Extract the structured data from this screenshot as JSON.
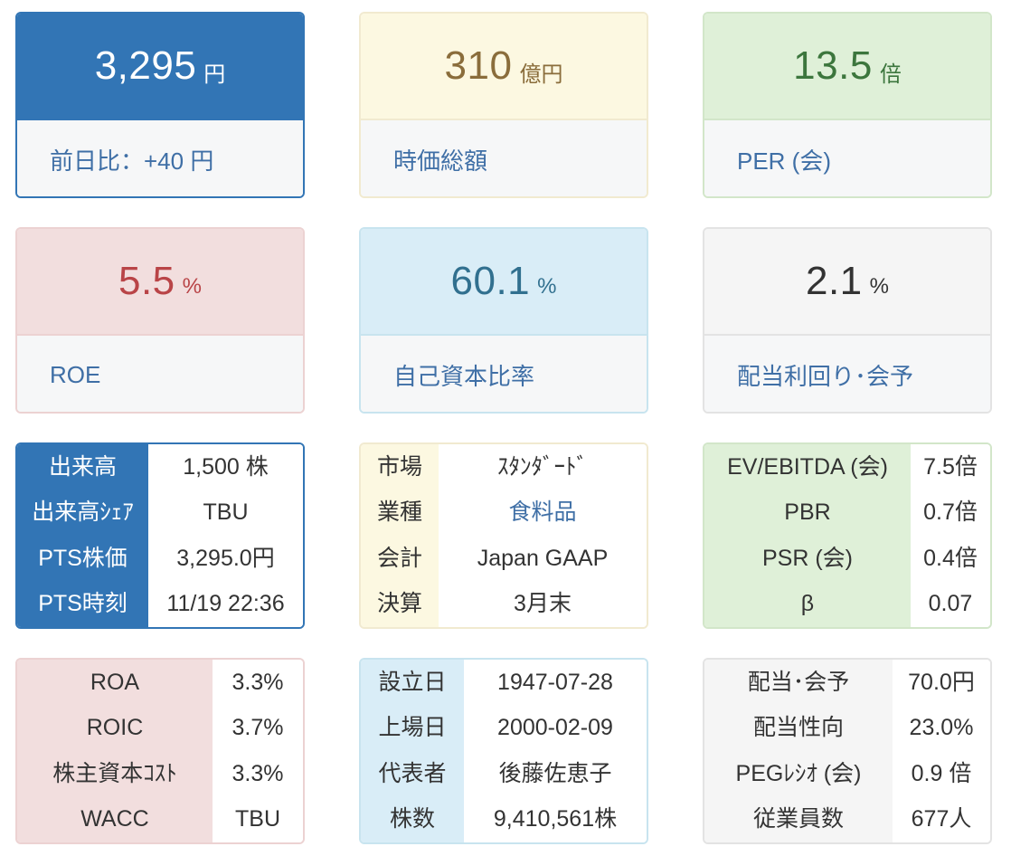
{
  "cards": {
    "price": {
      "value": "3,295",
      "unit": "円",
      "label": "前日比：+40 円"
    },
    "market_cap": {
      "value": "310",
      "unit": "億円",
      "label": "時価総額"
    },
    "per": {
      "value": "13.5",
      "unit": "倍",
      "label": "PER (会)"
    },
    "roe": {
      "value": "5.5",
      "unit": "%",
      "label": "ROE"
    },
    "equity_ratio": {
      "value": "60.1",
      "unit": "%",
      "label": "自己資本比率"
    },
    "dividend_yield": {
      "value": "2.1",
      "unit": "%",
      "label": "配当利回り･会予"
    }
  },
  "trading": [
    {
      "key": "出来高",
      "value": "1,500 株"
    },
    {
      "key": "出来高ｼｪｱ",
      "value": "TBU"
    },
    {
      "key": "PTS株価",
      "value": "3,295.0円"
    },
    {
      "key": "PTS時刻",
      "value": "11/19 22:36"
    }
  ],
  "company": [
    {
      "key": "市場",
      "value": "ｽﾀﾝﾀﾞｰﾄﾞ"
    },
    {
      "key": "業種",
      "value": "食料品"
    },
    {
      "key": "会計",
      "value": "Japan GAAP"
    },
    {
      "key": "決算",
      "value": "3月末"
    }
  ],
  "valuation": [
    {
      "key": "EV/EBITDA (会)",
      "value": "7.5倍"
    },
    {
      "key": "PBR",
      "value": "0.7倍"
    },
    {
      "key": "PSR (会)",
      "value": "0.4倍"
    },
    {
      "key": "β",
      "value": "0.07"
    }
  ],
  "returns": [
    {
      "key": "ROA",
      "value": "3.3%"
    },
    {
      "key": "ROIC",
      "value": "3.7%"
    },
    {
      "key": "株主資本ｺｽﾄ",
      "value": "3.3%"
    },
    {
      "key": "WACC",
      "value": "TBU"
    }
  ],
  "profile": [
    {
      "key": "設立日",
      "value": "1947-07-28"
    },
    {
      "key": "上場日",
      "value": "2000-02-09"
    },
    {
      "key": "代表者",
      "value": "後藤佐恵子"
    },
    {
      "key": "株数",
      "value": "9,410,561株"
    }
  ],
  "dividend": [
    {
      "key": "配当･会予",
      "value": "70.0円"
    },
    {
      "key": "配当性向",
      "value": "23.0%"
    },
    {
      "key": "PEGﾚｼｵ (会)",
      "value": "0.9 倍"
    },
    {
      "key": "従業員数",
      "value": "677人"
    }
  ]
}
